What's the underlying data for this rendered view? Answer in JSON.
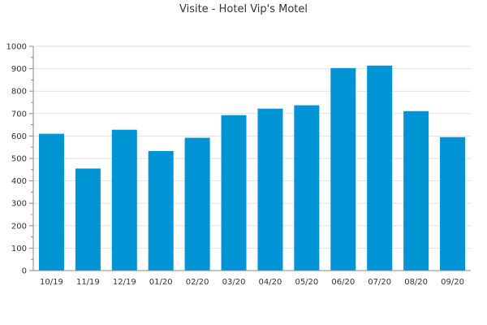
{
  "chart_data": {
    "type": "bar",
    "title": "Visite - Hotel Vip's Motel",
    "xlabel": "",
    "ylabel": "",
    "categories": [
      "10/19",
      "11/19",
      "12/19",
      "01/20",
      "02/20",
      "03/20",
      "04/20",
      "05/20",
      "06/20",
      "07/20",
      "08/20",
      "09/20"
    ],
    "values": [
      610,
      455,
      628,
      533,
      592,
      693,
      722,
      737,
      903,
      914,
      711,
      595
    ],
    "ylim": [
      0,
      1000
    ],
    "yticks": [
      0,
      100,
      200,
      300,
      400,
      500,
      600,
      700,
      800,
      900,
      1000
    ],
    "grid": true,
    "legend": "none",
    "colors": {
      "bar": "#0094d4",
      "grid": "#e2e2e2",
      "axis": "#888888",
      "text": "#333333"
    }
  }
}
